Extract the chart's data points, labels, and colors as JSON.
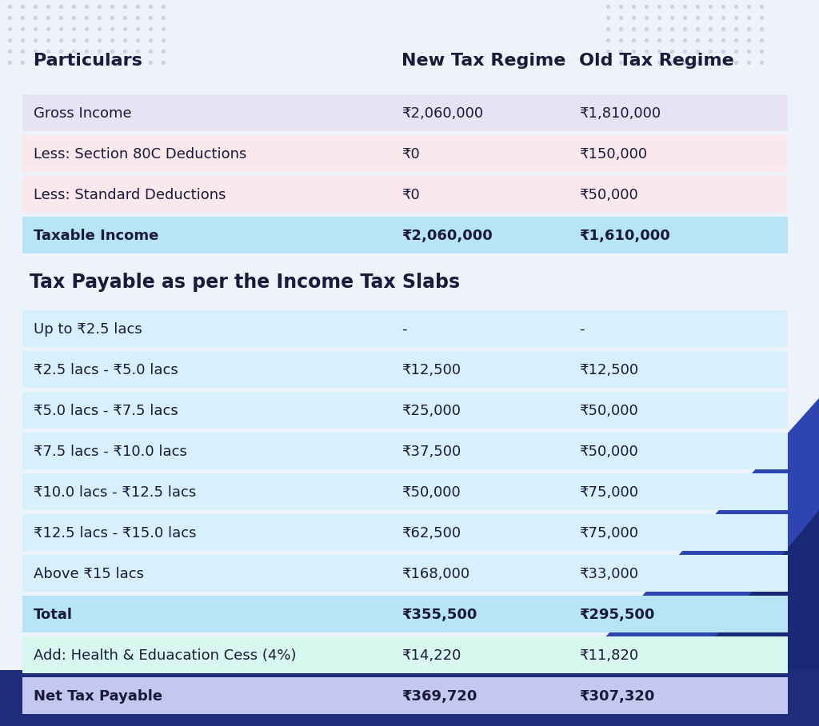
{
  "bg_color": "#eef2fb",
  "dot_color": "#b8c4e0",
  "header_row": [
    "Particulars",
    "New Tax Regime",
    "Old Tax Regime"
  ],
  "section1_rows": [
    {
      "label": "Gross Income",
      "new": "₹2,060,000",
      "old": "₹1,810,000",
      "bg": "#e8e2f5",
      "bold": false
    },
    {
      "label": "Less: Section 80C Deductions",
      "new": "₹0",
      "old": "₹150,000",
      "bg": "#fbe8ec",
      "bold": false
    },
    {
      "label": "Less: Standard Deductions",
      "new": "₹0",
      "old": "₹50,000",
      "bg": "#fbe8ec",
      "bold": false
    },
    {
      "label": "Taxable Income",
      "new": "₹2,060,000",
      "old": "₹1,610,000",
      "bg": "#b8e4f8",
      "bold": true
    }
  ],
  "section2_title": "Tax Payable as per the Income Tax Slabs",
  "section2_rows": [
    {
      "label": "Up to ₹2.5 lacs",
      "new": "-",
      "old": "-",
      "bg": "#d8f0fc",
      "bold": false
    },
    {
      "label": "₹2.5 lacs - ₹5.0 lacs",
      "new": "₹12,500",
      "old": "₹12,500",
      "bg": "#d8f0fc",
      "bold": false
    },
    {
      "label": "₹5.0 lacs - ₹7.5 lacs",
      "new": "₹25,000",
      "old": "₹50,000",
      "bg": "#d8f0fc",
      "bold": false
    },
    {
      "label": "₹7.5 lacs - ₹10.0 lacs",
      "new": "₹37,500",
      "old": "₹50,000",
      "bg": "#d8f0fc",
      "bold": false
    },
    {
      "label": "₹10.0 lacs - ₹12.5 lacs",
      "new": "₹50,000",
      "old": "₹75,000",
      "bg": "#d8f0fc",
      "bold": false
    },
    {
      "label": "₹12.5 lacs - ₹15.0 lacs",
      "new": "₹62,500",
      "old": "₹75,000",
      "bg": "#d8f0fc",
      "bold": false
    },
    {
      "label": "Above ₹15 lacs",
      "new": "₹168,000",
      "old": "₹33,000",
      "bg": "#d8f0fc",
      "bold": false
    },
    {
      "label": "Total",
      "new": "₹355,500",
      "old": "₹295,500",
      "bg": "#b8e4f8",
      "bold": true
    },
    {
      "label": "Add: Health & Eduacation Cess (4%)",
      "new": "₹14,220",
      "old": "₹11,820",
      "bg": "#d8f7ef",
      "bold": false
    },
    {
      "label": "Net Tax Payable",
      "new": "₹369,720",
      "old": "₹307,320",
      "bg": "#c4c8f0",
      "bold": true
    }
  ],
  "text_color": "#1a1a3a",
  "header_color": "#1a1a3a",
  "navy_bar_color": "#1e2d7a",
  "triangle1_color": "#2e44b0",
  "triangle2_color": "#1a2878"
}
